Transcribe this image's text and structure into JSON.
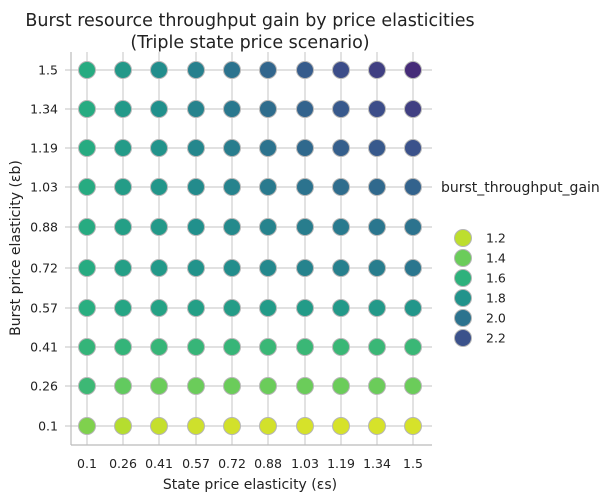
{
  "chart_data": {
    "type": "scatter",
    "title": "Burst resource throughput gain by price elasticities",
    "subtitle": "(Triple state price scenario)",
    "xlabel": "State price elasticity (εs)",
    "ylabel": "Burst price elasticity (εb)",
    "x_ticks": [
      "0.1",
      "0.26",
      "0.41",
      "0.57",
      "0.72",
      "0.88",
      "1.03",
      "1.19",
      "1.34",
      "1.5"
    ],
    "y_ticks": [
      "0.1",
      "0.26",
      "0.41",
      "0.57",
      "0.72",
      "0.88",
      "1.03",
      "1.19",
      "1.34",
      "1.5"
    ],
    "grid": true,
    "legend_placement": "right",
    "legend": {
      "title": "burst_throughput_gain",
      "entries": [
        "1.2",
        "1.4",
        "1.6",
        "1.8",
        "2.0",
        "2.2"
      ],
      "values": [
        1.2,
        1.4,
        1.6,
        1.8,
        2.0,
        2.2
      ]
    },
    "colormap": "viridis (reversed)",
    "values_by_row": [
      [
        1.35,
        1.22,
        1.18,
        1.16,
        1.15,
        1.15,
        1.14,
        1.14,
        1.14,
        1.14
      ],
      [
        1.55,
        1.42,
        1.4,
        1.4,
        1.4,
        1.4,
        1.4,
        1.4,
        1.4,
        1.4
      ],
      [
        1.58,
        1.58,
        1.57,
        1.57,
        1.57,
        1.56,
        1.56,
        1.56,
        1.56,
        1.56
      ],
      [
        1.62,
        1.68,
        1.7,
        1.72,
        1.74,
        1.75,
        1.75,
        1.76,
        1.76,
        1.78
      ],
      [
        1.64,
        1.72,
        1.76,
        1.8,
        1.84,
        1.87,
        1.9,
        1.92,
        1.94,
        1.98
      ],
      [
        1.64,
        1.72,
        1.76,
        1.82,
        1.86,
        1.9,
        1.94,
        1.96,
        1.98,
        2.0
      ],
      [
        1.64,
        1.74,
        1.78,
        1.85,
        1.9,
        1.96,
        2.0,
        2.04,
        2.06,
        2.1
      ],
      [
        1.64,
        1.75,
        1.8,
        1.88,
        1.94,
        2.0,
        2.06,
        2.12,
        2.16,
        2.2
      ],
      [
        1.64,
        1.76,
        1.82,
        1.9,
        1.97,
        2.04,
        2.1,
        2.16,
        2.22,
        2.28
      ],
      [
        1.64,
        1.77,
        1.84,
        1.92,
        2.0,
        2.08,
        2.14,
        2.22,
        2.28,
        2.36
      ]
    ]
  }
}
